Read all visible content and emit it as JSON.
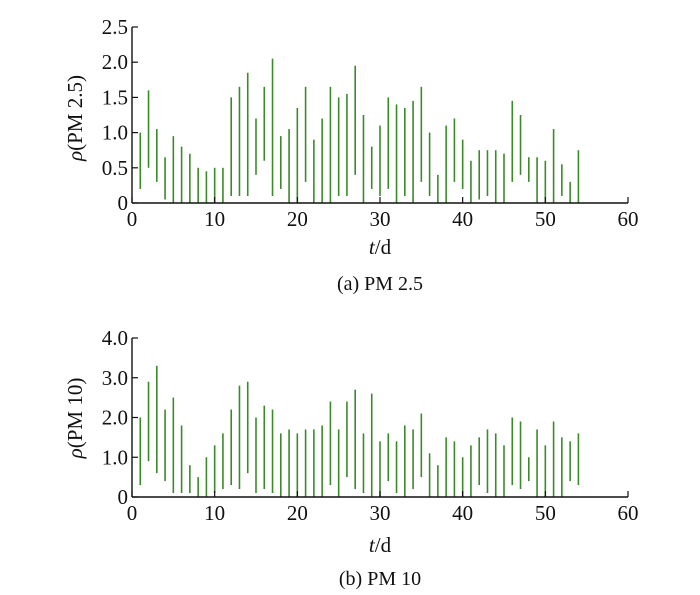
{
  "figure": {
    "background": "#ffffff",
    "series_color": "#3a8a2a",
    "axis_color": "#111111"
  },
  "chart_data": [
    {
      "type": "bar",
      "mark": "vertical range lines",
      "title": "",
      "caption": "(a) PM 2.5",
      "ylabel": {
        "symbol": "ρ",
        "text": "(PM 2.5)"
      },
      "xlabel": {
        "symbol": "t",
        "text": "/d"
      },
      "xlim": [
        0,
        60
      ],
      "ylim": [
        0,
        2.5
      ],
      "xticks": [
        0,
        10,
        20,
        30,
        40,
        50,
        60
      ],
      "yticks": [
        0,
        0.5,
        1.0,
        1.5,
        2.0,
        2.5
      ],
      "ytick_labels": [
        "0",
        "0.5",
        "1.0",
        "1.5",
        "2.0",
        "2.5"
      ],
      "grid": false,
      "series": [
        {
          "x": [
            1,
            2,
            3,
            4,
            5,
            6,
            7,
            8,
            9,
            10,
            11,
            12,
            13,
            14,
            15,
            16,
            17,
            18,
            19,
            20,
            21,
            22,
            23,
            24,
            25,
            26,
            27,
            28,
            29,
            30,
            31,
            32,
            33,
            34,
            35,
            36,
            37,
            38,
            39,
            40,
            41,
            42,
            43,
            44,
            45,
            46,
            47,
            48,
            49,
            50,
            51,
            52,
            53,
            54
          ],
          "low": [
            0.2,
            0.5,
            0.3,
            0.05,
            0,
            0,
            0,
            0,
            0,
            0,
            0,
            0.1,
            0.1,
            0.1,
            0.4,
            0.6,
            0.1,
            0.2,
            0,
            0,
            0.3,
            0,
            0,
            0,
            0.1,
            0.1,
            0.4,
            0,
            0.2,
            0.1,
            0.2,
            0,
            0.1,
            0,
            0.3,
            0.1,
            0,
            0,
            0.3,
            0.2,
            0,
            0.05,
            0.1,
            0,
            0,
            0.3,
            0.4,
            0.3,
            0,
            0,
            0,
            0.1,
            0,
            0
          ],
          "high": [
            1.0,
            1.6,
            1.05,
            0.65,
            0.95,
            0.8,
            0.7,
            0.5,
            0.45,
            0.5,
            0.5,
            1.5,
            1.65,
            1.85,
            1.2,
            1.65,
            2.05,
            0.95,
            1.05,
            1.35,
            1.65,
            0.9,
            1.2,
            1.65,
            1.5,
            1.55,
            1.95,
            1.25,
            0.8,
            1.1,
            1.5,
            1.4,
            1.35,
            1.45,
            1.65,
            1.0,
            0.4,
            1.1,
            1.2,
            0.9,
            0.6,
            0.75,
            0.75,
            0.75,
            0.7,
            1.45,
            1.25,
            0.65,
            0.65,
            0.6,
            1.05,
            0.55,
            0.3,
            0.75
          ]
        }
      ]
    },
    {
      "type": "bar",
      "mark": "vertical range lines",
      "title": "",
      "caption": "(b) PM 10",
      "ylabel": {
        "symbol": "ρ",
        "text": "(PM 10)"
      },
      "xlabel": {
        "symbol": "t",
        "text": "/d"
      },
      "xlim": [
        0,
        60
      ],
      "ylim": [
        0,
        4.0
      ],
      "xticks": [
        0,
        10,
        20,
        30,
        40,
        50,
        60
      ],
      "yticks": [
        0,
        1.0,
        2.0,
        3.0,
        4.0
      ],
      "ytick_labels": [
        "0",
        "1.0",
        "2.0",
        "3.0",
        "4.0"
      ],
      "grid": false,
      "series": [
        {
          "x": [
            1,
            2,
            3,
            4,
            5,
            6,
            7,
            8,
            9,
            10,
            11,
            12,
            13,
            14,
            15,
            16,
            17,
            18,
            19,
            20,
            21,
            22,
            23,
            24,
            25,
            26,
            27,
            28,
            29,
            30,
            31,
            32,
            33,
            34,
            35,
            36,
            37,
            38,
            39,
            40,
            41,
            42,
            43,
            44,
            45,
            46,
            47,
            48,
            49,
            50,
            51,
            52,
            53,
            54
          ],
          "low": [
            0.3,
            0.9,
            0.6,
            0.4,
            0.1,
            0.1,
            0.1,
            0,
            0,
            0.1,
            0.2,
            0.3,
            0.2,
            0.6,
            0.1,
            0.2,
            0.1,
            0,
            0,
            0,
            0,
            0,
            0,
            0.3,
            0,
            0.5,
            0.2,
            0.1,
            0,
            0,
            0.4,
            0.1,
            0,
            0.2,
            0.5,
            0,
            0,
            0,
            0,
            0,
            0,
            0.3,
            0.1,
            0,
            0,
            0.3,
            0.2,
            0.4,
            0,
            0,
            0,
            0,
            0.4,
            0.3
          ],
          "high": [
            2.0,
            2.9,
            3.3,
            2.2,
            2.5,
            1.8,
            0.8,
            0.5,
            1.0,
            1.3,
            1.6,
            2.2,
            2.8,
            2.9,
            2.0,
            2.3,
            2.2,
            1.6,
            1.7,
            1.6,
            1.7,
            1.7,
            1.8,
            2.4,
            1.7,
            2.4,
            2.7,
            1.6,
            2.6,
            1.4,
            1.6,
            1.4,
            1.8,
            1.7,
            2.1,
            1.1,
            0.8,
            1.5,
            1.4,
            1.0,
            1.3,
            1.5,
            1.7,
            1.6,
            1.3,
            2.0,
            1.9,
            1.0,
            1.7,
            1.3,
            1.9,
            1.5,
            1.4,
            1.6
          ]
        }
      ]
    }
  ]
}
